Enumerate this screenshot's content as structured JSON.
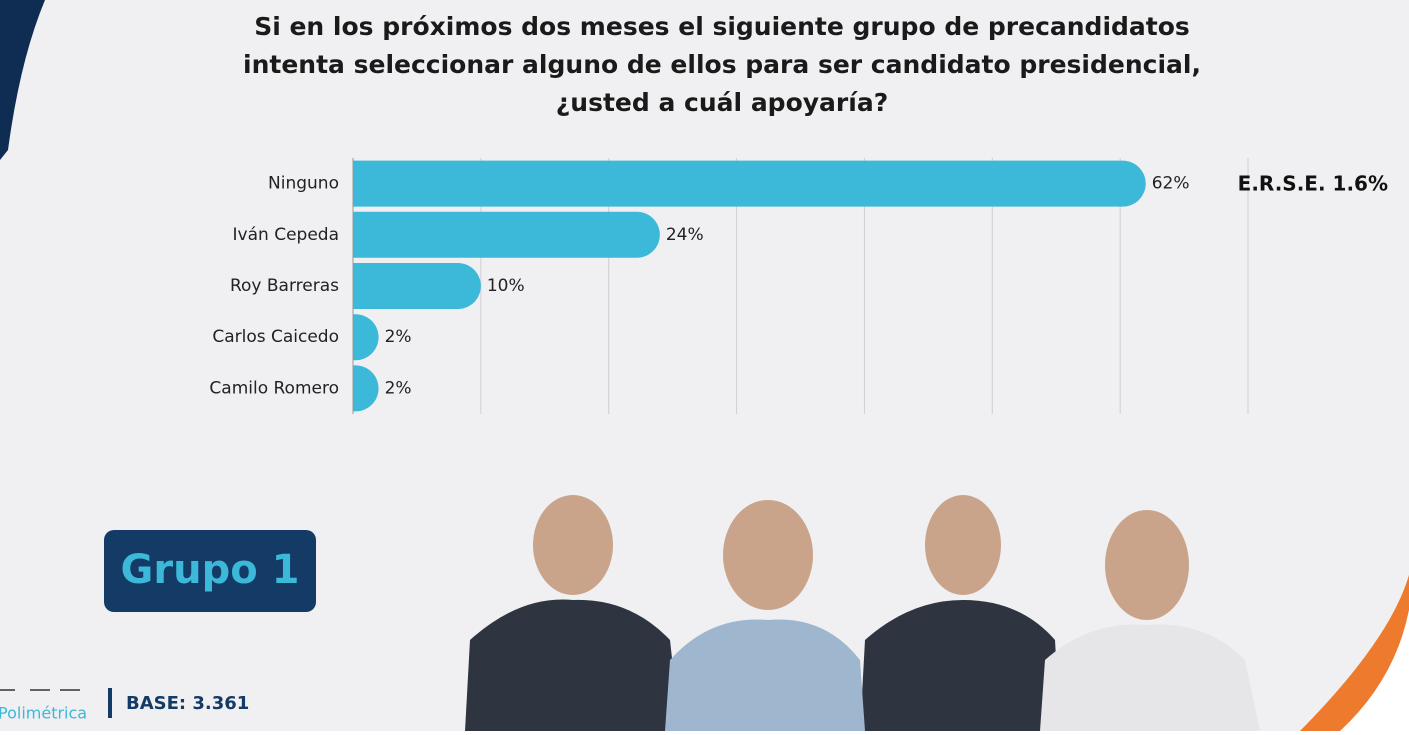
{
  "chart_data": {
    "type": "bar",
    "orientation": "horizontal",
    "title": [
      "Si en los próximos dos meses el siguiente grupo de precandidatos",
      "intenta seleccionar alguno de ellos para ser candidato presidencial,",
      "¿usted a cuál apoyaría?"
    ],
    "categories": [
      "Ninguno",
      "Iván Cepeda",
      "Roy Barreras",
      "Carlos Caicedo",
      "Camilo Romero"
    ],
    "values": [
      62,
      24,
      10,
      2,
      2
    ],
    "value_labels": [
      "62%",
      "24%",
      "10%",
      "2%",
      "2%"
    ],
    "color": "#3cb8d8",
    "xlim": [
      0,
      70
    ],
    "xticks": [
      0,
      10,
      20,
      30,
      40,
      50,
      60,
      70
    ],
    "grid": true,
    "annotation": "E.R.S.E. 1.6%"
  },
  "group_label": "Grupo 1",
  "base": "BASE: 3.361",
  "logo": "Polimétrica"
}
